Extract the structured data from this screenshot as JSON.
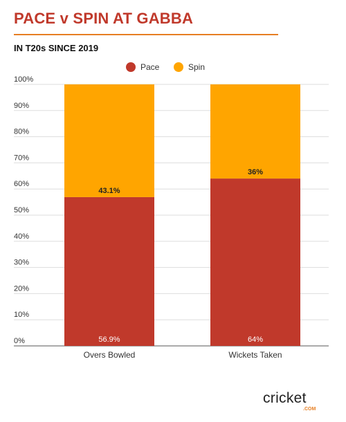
{
  "header": {
    "title": "PACE v SPIN AT GABBA",
    "subtitle": "IN T20s SINCE 2019"
  },
  "brand": {
    "logo_text": "cricket",
    "logo_suffix": ".COM"
  },
  "colors": {
    "pace": "#c0392b",
    "spin": "#ffa500",
    "title": "#c0392b",
    "rule": "#e67e22"
  },
  "chart_data": {
    "type": "bar",
    "stacked": true,
    "categories": [
      "Overs Bowled",
      "Wickets Taken"
    ],
    "series": [
      {
        "name": "Pace",
        "values": [
          56.9,
          64
        ],
        "labels": [
          "56.9%",
          "64%"
        ]
      },
      {
        "name": "Spin",
        "values": [
          43.1,
          36
        ],
        "labels": [
          "43.1%",
          "36%"
        ]
      }
    ],
    "yticks": [
      "0%",
      "10%",
      "20%",
      "30%",
      "40%",
      "50%",
      "60%",
      "70%",
      "80%",
      "90%",
      "100%"
    ],
    "ylim": [
      0,
      100
    ],
    "legend": "top-center",
    "grid": true
  }
}
